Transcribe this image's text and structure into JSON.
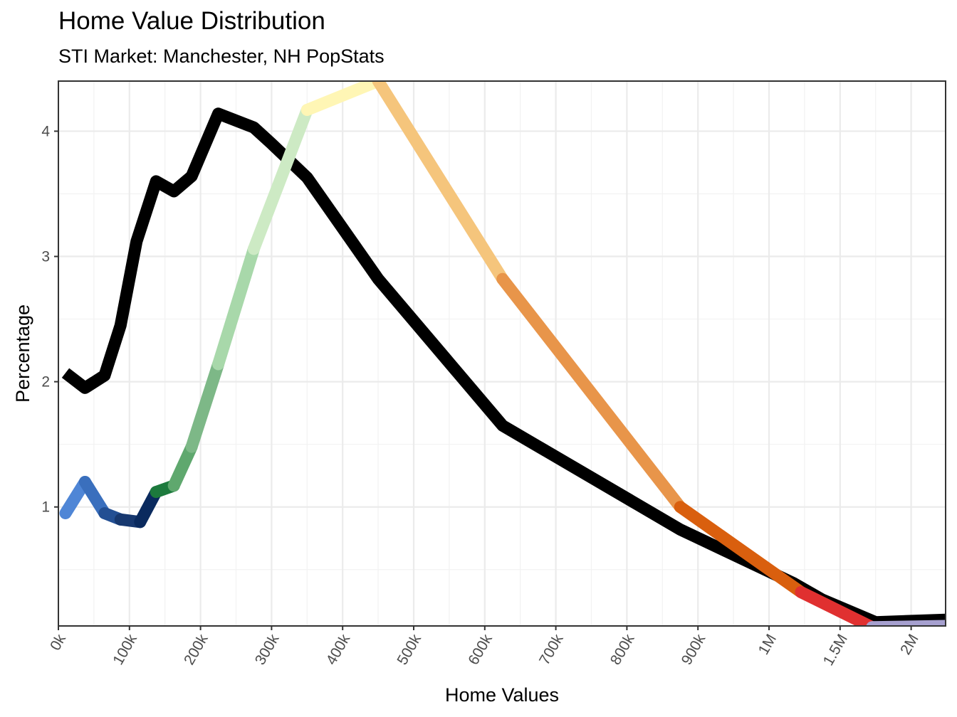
{
  "chart_data": {
    "type": "line",
    "title": "Home Value Distribution",
    "subtitle": "STI Market: Manchester, NH PopStats",
    "xlabel": "Home Values",
    "ylabel": "Percentage",
    "x_tick_labels": [
      "0k",
      "100k",
      "200k",
      "300k",
      "400k",
      "500k",
      "600k",
      "700k",
      "800k",
      "900k",
      "1M",
      "1.5M",
      "2M"
    ],
    "y_ticks": [
      1,
      2,
      3,
      4
    ],
    "ylim": [
      0.05,
      4.4
    ],
    "grid": true,
    "x_note": "x values are positions on the printed (non-linear) tick scale: 0-10 = 0k-900k in 100k steps, 10 = 1M, 11 = 1.5M, 12 = 2M",
    "series": [
      {
        "color": "#000000",
        "points": [
          {
            "x": 0.1,
            "y": 2.07
          },
          {
            "x": 0.375,
            "y": 1.95
          },
          {
            "x": 0.65,
            "y": 2.05
          },
          {
            "x": 0.875,
            "y": 2.45
          },
          {
            "x": 1.1,
            "y": 3.12
          },
          {
            "x": 1.375,
            "y": 3.6
          },
          {
            "x": 1.625,
            "y": 3.52
          },
          {
            "x": 1.875,
            "y": 3.64
          },
          {
            "x": 2.25,
            "y": 4.14
          },
          {
            "x": 2.75,
            "y": 4.03
          },
          {
            "x": 3.0,
            "y": 3.9
          },
          {
            "x": 3.5,
            "y": 3.63
          },
          {
            "x": 4.5,
            "y": 2.82
          },
          {
            "x": 6.25,
            "y": 1.65
          },
          {
            "x": 8.75,
            "y": 0.82
          },
          {
            "x": 10.35,
            "y": 0.39
          },
          {
            "x": 10.75,
            "y": 0.26
          },
          {
            "x": 11.5,
            "y": 0.08
          },
          {
            "x": 12.5,
            "y": 0.1
          }
        ]
      },
      {
        "gradient": true,
        "points": [
          {
            "x": 0.1,
            "y": 0.95,
            "color": "#4f86d6"
          },
          {
            "x": 0.375,
            "y": 1.2,
            "color": "#3a6fbd"
          },
          {
            "x": 0.65,
            "y": 0.95,
            "color": "#234f93"
          },
          {
            "x": 0.875,
            "y": 0.9,
            "color": "#17386f"
          },
          {
            "x": 1.15,
            "y": 0.88,
            "color": "#0a2a5e"
          },
          {
            "x": 1.375,
            "y": 1.12,
            "color": "#1d7a3d"
          },
          {
            "x": 1.625,
            "y": 1.17,
            "color": "#5fa86e"
          },
          {
            "x": 1.875,
            "y": 1.48,
            "color": "#7db887"
          },
          {
            "x": 2.25,
            "y": 2.14,
            "color": "#a8d8aa"
          },
          {
            "x": 2.75,
            "y": 3.06,
            "color": "#cdeac4"
          },
          {
            "x": 3.5,
            "y": 4.17,
            "color": "#fff6b5"
          },
          {
            "x": 4.5,
            "y": 4.4,
            "color": "#f5c57c"
          },
          {
            "x": 6.25,
            "y": 2.82,
            "color": "#e8954a"
          },
          {
            "x": 8.75,
            "y": 1.0,
            "color": "#d95f0e"
          },
          {
            "x": 10.45,
            "y": 0.32,
            "color": "#e03030"
          },
          {
            "x": 11.45,
            "y": 0.04,
            "color": "#a6a0cf"
          },
          {
            "x": 12.5,
            "y": 0.05,
            "color": "#6e51a3"
          }
        ]
      }
    ]
  }
}
